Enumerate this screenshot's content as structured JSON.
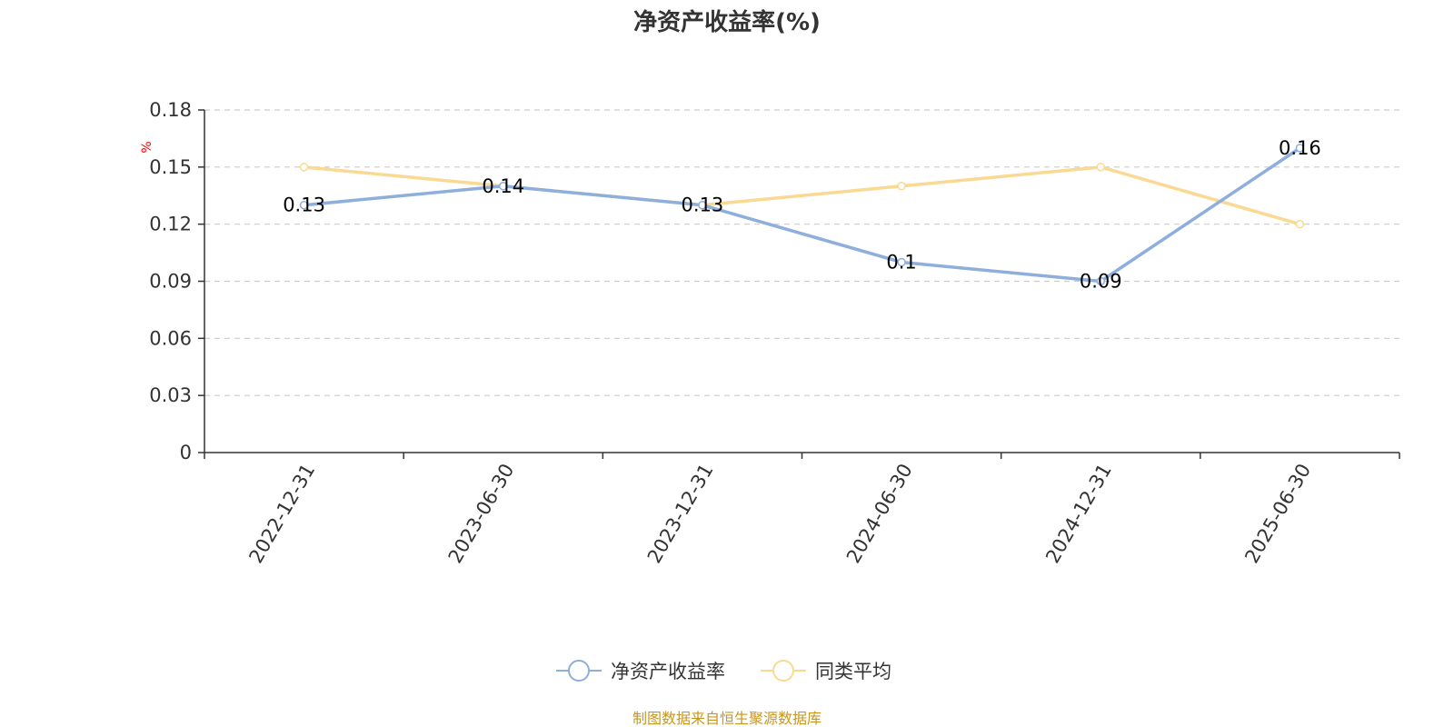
{
  "title": "净资产收益率(%)",
  "source": "制图数据来自恒生聚源数据库",
  "colors": {
    "primary": "#8eaedb",
    "average": "#fad992",
    "grid": "#cccccc",
    "axis": "#333333",
    "unit": "#ff0000",
    "source": "#c8961e"
  },
  "chart_data": {
    "type": "line",
    "title": "净资产收益率(%)",
    "ylabel": "%",
    "ylim": [
      0,
      0.18
    ],
    "yticks": [
      0,
      0.03,
      0.06,
      0.09,
      0.12,
      0.15,
      0.18
    ],
    "ytick_labels": [
      "0",
      "0.03",
      "0.06",
      "0.09",
      "0.12",
      "0.15",
      "0.18"
    ],
    "categories": [
      "2022-12-31",
      "2023-06-30",
      "2023-12-31",
      "2024-06-30",
      "2024-12-31",
      "2025-06-30"
    ],
    "grid": true,
    "legend_position": "bottom",
    "series": [
      {
        "name": "净资产收益率",
        "values": [
          0.13,
          0.14,
          0.13,
          0.1,
          0.09,
          0.16
        ],
        "labels": [
          "0.13",
          "0.14",
          "0.13",
          "0.1",
          "0.09",
          "0.16"
        ],
        "show_labels": true
      },
      {
        "name": "同类平均",
        "values": [
          0.15,
          0.14,
          0.13,
          0.14,
          0.15,
          0.12
        ],
        "show_labels": false
      }
    ]
  }
}
